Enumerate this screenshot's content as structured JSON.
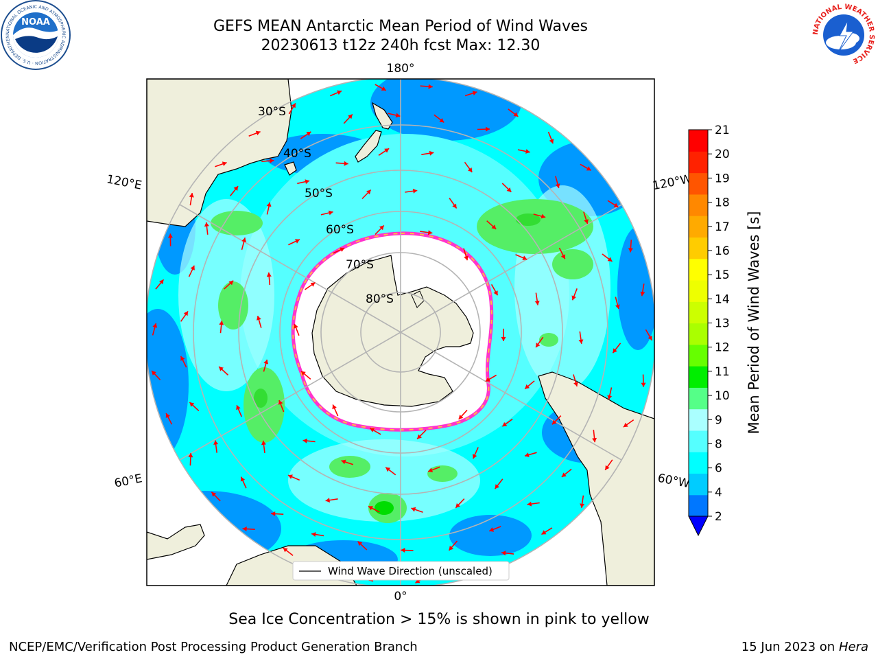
{
  "header": {
    "title_line1": "GEFS MEAN Antarctic Mean Period of Wind Waves",
    "title_line2": "20230613 t12z 240h fcst   Max: 12.30"
  },
  "logos": {
    "left": "NOAA",
    "left_ring": "NATIONAL OCEANIC AND ATMOSPHERIC ADMINISTRATION · U.S. DEPARTMENT OF COMMERCE",
    "right_ring": "NATIONAL WEATHER SERVICE"
  },
  "map": {
    "projection": "south-polar-stereographic",
    "longitude_labels": [
      "180°",
      "120°E",
      "120°W",
      "60°E",
      "60°W",
      "0°"
    ],
    "latitude_labels": [
      "30°S",
      "40°S",
      "50°S",
      "60°S",
      "70°S",
      "80°S"
    ],
    "legend_label": "Wind Wave Direction (unscaled)",
    "colors": {
      "land": "#efefdc",
      "ice": "#ffffff",
      "ocean_base": "#00ffff",
      "arrow": "#ff0000",
      "ice_edge": "#ff33cc"
    }
  },
  "colorbar": {
    "label": "Mean Period of Wind Waves [s]",
    "ticks": [
      "2",
      "4",
      "6",
      "8",
      "9",
      "10",
      "11",
      "12",
      "13",
      "14",
      "15",
      "16",
      "17",
      "18",
      "19",
      "20",
      "21"
    ],
    "colors": [
      "#0077ff",
      "#00ccff",
      "#00ffff",
      "#55ffff",
      "#aaffff",
      "#55ff88",
      "#00ee00",
      "#66ff00",
      "#aaff00",
      "#ccff00",
      "#eeff00",
      "#ffff00",
      "#ffcc00",
      "#ffaa00",
      "#ff8800",
      "#ff5500",
      "#ff2200",
      "#ff0000"
    ],
    "under_color": "#0000ff"
  },
  "notes": {
    "ice_caption": "Sea Ice Concentration > 15% is shown in pink to yellow",
    "footer_left": "NCEP/EMC/Verification Post Processing Product Generation Branch",
    "footer_date": "15 Jun 2023 on",
    "footer_system": "Hera"
  }
}
